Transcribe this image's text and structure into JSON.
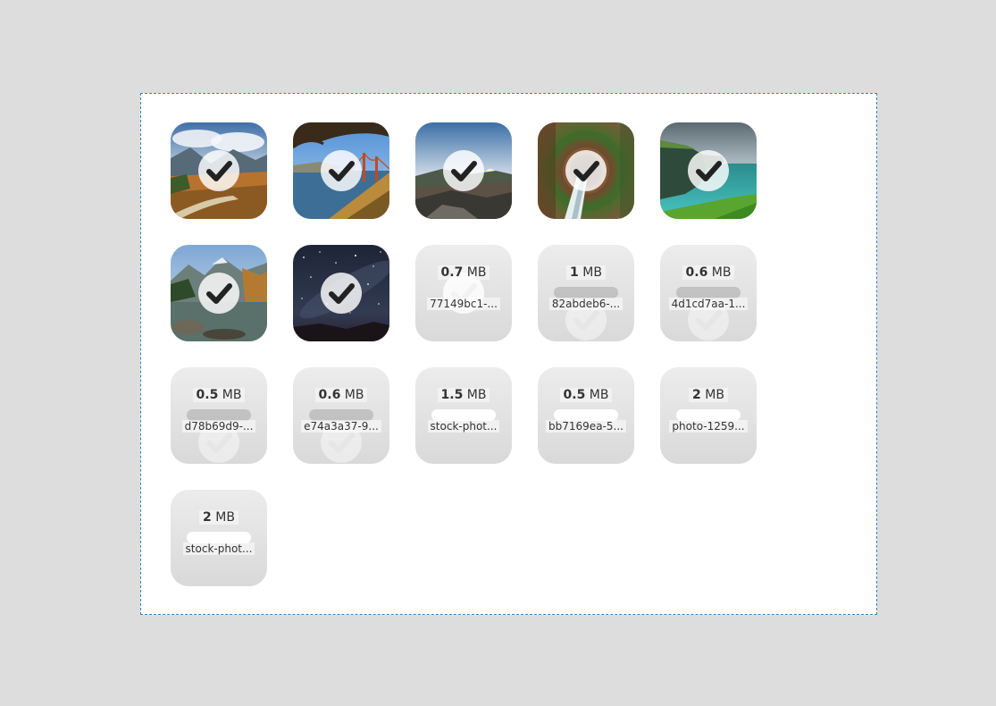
{
  "files": [
    {
      "kind": "image",
      "scene": "mountain-trail",
      "icon": "checkmark-icon"
    },
    {
      "kind": "image",
      "scene": "golden-gate",
      "icon": "checkmark-icon"
    },
    {
      "kind": "image",
      "scene": "sunset-valley",
      "icon": "checkmark-icon"
    },
    {
      "kind": "image",
      "scene": "forest-vortex",
      "icon": "checkmark-icon"
    },
    {
      "kind": "image",
      "scene": "sea-cliffs",
      "icon": "checkmark-icon"
    },
    {
      "kind": "image",
      "scene": "alpine-lake",
      "icon": "checkmark-icon"
    },
    {
      "kind": "image",
      "scene": "night-sky",
      "icon": "checkmark-icon"
    },
    {
      "kind": "file",
      "size_value": "0.7",
      "size_unit": "MB",
      "filename": "77149bc1-...",
      "progress": 0,
      "check": "visible"
    },
    {
      "kind": "file",
      "size_value": "1",
      "size_unit": "MB",
      "filename": "82abdeb6-...",
      "progress": 0,
      "check": "faint"
    },
    {
      "kind": "file",
      "size_value": "0.6",
      "size_unit": "MB",
      "filename": "4d1cd7aa-1...",
      "progress": 0,
      "check": "faint"
    },
    {
      "kind": "file",
      "size_value": "0.5",
      "size_unit": "MB",
      "filename": "d78b69d9-...",
      "progress": 0,
      "check": "faint"
    },
    {
      "kind": "file",
      "size_value": "0.6",
      "size_unit": "MB",
      "filename": "e74a3a37-9...",
      "progress": 0,
      "check": "faint"
    },
    {
      "kind": "file",
      "size_value": "1.5",
      "size_unit": "MB",
      "filename": "stock-phot...",
      "progress": 1,
      "check": "none"
    },
    {
      "kind": "file",
      "size_value": "0.5",
      "size_unit": "MB",
      "filename": "bb7169ea-5...",
      "progress": 1,
      "check": "none"
    },
    {
      "kind": "file",
      "size_value": "2",
      "size_unit": "MB",
      "filename": "photo-1259...",
      "progress": 1,
      "check": "none"
    },
    {
      "kind": "file",
      "size_value": "2",
      "size_unit": "MB",
      "filename": "stock-phot...",
      "progress": 1,
      "check": "none"
    }
  ]
}
